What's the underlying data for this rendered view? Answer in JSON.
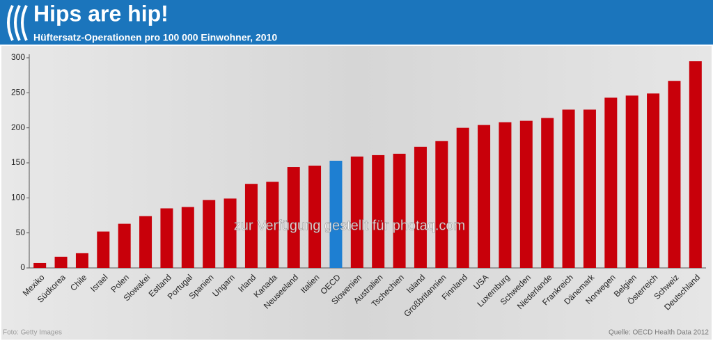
{
  "chart_data": {
    "type": "bar",
    "title": "Hips are hip!",
    "subtitle": "Hüftersatz-Operationen pro 100 000 Einwohner, 2010",
    "categories": [
      "Mexiko",
      "Südkorea",
      "Chile",
      "Israel",
      "Polen",
      "Slowakei",
      "Estland",
      "Portugal",
      "Spanien",
      "Ungarn",
      "Irland",
      "Kanada",
      "Neuseeland",
      "Italien",
      "OECD",
      "Slowenien",
      "Australien",
      "Tschechien",
      "Island",
      "Großbritannien",
      "Finnland",
      "USA",
      "Luxemburg",
      "Schweden",
      "Niederlande",
      "Frankreich",
      "Dänemark",
      "Norwegen",
      "Belgien",
      "Österreich",
      "Schweiz",
      "Deutschland"
    ],
    "values": [
      7,
      16,
      21,
      52,
      63,
      74,
      85,
      87,
      97,
      99,
      120,
      123,
      144,
      146,
      153,
      159,
      161,
      163,
      173,
      181,
      200,
      204,
      208,
      210,
      214,
      226,
      226,
      243,
      246,
      249,
      267,
      295
    ],
    "colors": [
      "#c8000a",
      "#c8000a",
      "#c8000a",
      "#c8000a",
      "#c8000a",
      "#c8000a",
      "#c8000a",
      "#c8000a",
      "#c8000a",
      "#c8000a",
      "#c8000a",
      "#c8000a",
      "#c8000a",
      "#c8000a",
      "#1e7fd2",
      "#c8000a",
      "#c8000a",
      "#c8000a",
      "#c8000a",
      "#c8000a",
      "#c8000a",
      "#c8000a",
      "#c8000a",
      "#c8000a",
      "#c8000a",
      "#c8000a",
      "#c8000a",
      "#c8000a",
      "#c8000a",
      "#c8000a",
      "#c8000a",
      "#c8000a"
    ],
    "ylim": [
      0,
      300
    ],
    "yticks": [
      0,
      50,
      100,
      150,
      200,
      250,
      300
    ],
    "grid": false,
    "annotation": "zur Verfügung gestellt für photaq.com",
    "credit": "Foto: Getty Images",
    "source": "Quelle: OECD Health Data 2012"
  }
}
